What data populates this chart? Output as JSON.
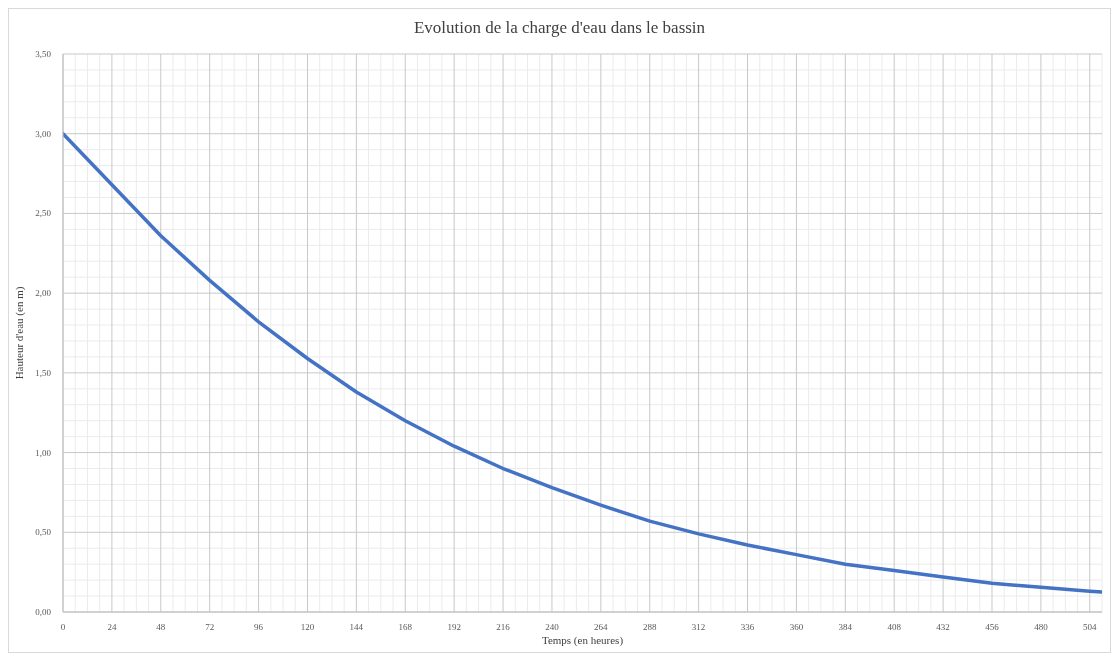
{
  "chart_data": {
    "type": "line",
    "title": "Evolution de la charge d'eau dans le bassin",
    "xlabel": "Temps (en heures)",
    "ylabel": "Hauteur d'eau (en m)",
    "x": [
      0,
      24,
      48,
      72,
      96,
      120,
      144,
      168,
      192,
      216,
      240,
      264,
      288,
      312,
      336,
      360,
      384,
      408,
      432,
      456,
      480,
      504,
      510
    ],
    "series": [
      {
        "color": "#4472c4",
        "values": [
          3.0,
          2.68,
          2.36,
          2.08,
          1.82,
          1.59,
          1.38,
          1.2,
          1.04,
          0.9,
          0.78,
          0.67,
          0.57,
          0.49,
          0.42,
          0.36,
          0.3,
          0.26,
          0.22,
          0.18,
          0.155,
          0.13,
          0.125
        ]
      }
    ],
    "xlim": [
      0,
      510
    ],
    "xticks": [
      0,
      {
        "value": 6,
        "label": null
      },
      {
        "value": 12,
        "label": null
      },
      {
        "value": 18,
        "label": null
      },
      24,
      {
        "value": 30,
        "label": null
      },
      {
        "value": 36,
        "label": null
      },
      {
        "value": 42,
        "label": null
      },
      48,
      {
        "value": 54,
        "label": null
      },
      {
        "value": 60,
        "label": null
      },
      {
        "value": 66,
        "label": null
      },
      72,
      {
        "value": 78,
        "label": null
      },
      {
        "value": 84,
        "label": null
      },
      {
        "value": 90,
        "label": null
      },
      96,
      {
        "value": 102,
        "label": null
      },
      {
        "value": 108,
        "label": null
      },
      {
        "value": 114,
        "label": null
      },
      120,
      {
        "value": 126,
        "label": null
      },
      {
        "value": 132,
        "label": null
      },
      {
        "value": 138,
        "label": null
      },
      144,
      {
        "value": 150,
        "label": null
      },
      {
        "value": 156,
        "label": null
      },
      {
        "value": 162,
        "label": null
      },
      168,
      {
        "value": 174,
        "label": null
      },
      {
        "value": 180,
        "label": null
      },
      {
        "value": 186,
        "label": null
      },
      192,
      {
        "value": 198,
        "label": null
      },
      {
        "value": 204,
        "label": null
      },
      {
        "value": 210,
        "label": null
      },
      216,
      {
        "value": 222,
        "label": null
      },
      {
        "value": 228,
        "label": null
      },
      {
        "value": 234,
        "label": null
      },
      240,
      {
        "value": 246,
        "label": null
      },
      {
        "value": 252,
        "label": null
      },
      {
        "value": 258,
        "label": null
      },
      264,
      {
        "value": 270,
        "label": null
      },
      {
        "value": 276,
        "label": null
      },
      {
        "value": 282,
        "label": null
      },
      288,
      {
        "value": 294,
        "label": null
      },
      {
        "value": 300,
        "label": null
      },
      {
        "value": 306,
        "label": null
      },
      312,
      {
        "value": 318,
        "label": null
      },
      {
        "value": 324,
        "label": null
      },
      {
        "value": 330,
        "label": null
      },
      336,
      {
        "value": 342,
        "label": null
      },
      {
        "value": 348,
        "label": null
      },
      {
        "value": 354,
        "label": null
      },
      360,
      {
        "value": 366,
        "label": null
      },
      {
        "value": 372,
        "label": null
      },
      {
        "value": 378,
        "label": null
      },
      384,
      {
        "value": 390,
        "label": null
      },
      {
        "value": 396,
        "label": null
      },
      {
        "value": 402,
        "label": null
      },
      408,
      {
        "value": 414,
        "label": null
      },
      {
        "value": 420,
        "label": null
      },
      {
        "value": 426,
        "label": null
      },
      432,
      {
        "value": 438,
        "label": null
      },
      {
        "value": 444,
        "label": null
      },
      {
        "value": 450,
        "label": null
      },
      456,
      {
        "value": 462,
        "label": null
      },
      {
        "value": 468,
        "label": null
      },
      {
        "value": 474,
        "label": null
      },
      480,
      {
        "value": 486,
        "label": null
      },
      {
        "value": 492,
        "label": null
      },
      {
        "value": 498,
        "label": null
      },
      504,
      {
        "value": 510,
        "label": null
      }
    ],
    "ylim": [
      0,
      3.5
    ],
    "yticks": [
      {
        "value": 0,
        "label": "0,00"
      },
      {
        "value": 0.1,
        "label": null
      },
      {
        "value": 0.2,
        "label": null
      },
      {
        "value": 0.3,
        "label": null
      },
      {
        "value": 0.4,
        "label": null
      },
      {
        "value": 0.5,
        "label": "0,50"
      },
      {
        "value": 0.6,
        "label": null
      },
      {
        "value": 0.7,
        "label": null
      },
      {
        "value": 0.8,
        "label": null
      },
      {
        "value": 0.9,
        "label": null
      },
      {
        "value": 1,
        "label": "1,00"
      },
      {
        "value": 1.1,
        "label": null
      },
      {
        "value": 1.2,
        "label": null
      },
      {
        "value": 1.3,
        "label": null
      },
      {
        "value": 1.4,
        "label": null
      },
      {
        "value": 1.5,
        "label": "1,50"
      },
      {
        "value": 1.6,
        "label": null
      },
      {
        "value": 1.7,
        "label": null
      },
      {
        "value": 1.8,
        "label": null
      },
      {
        "value": 1.9,
        "label": null
      },
      {
        "value": 2,
        "label": "2,00"
      },
      {
        "value": 2.1,
        "label": null
      },
      {
        "value": 2.2,
        "label": null
      },
      {
        "value": 2.3,
        "label": null
      },
      {
        "value": 2.4,
        "label": null
      },
      {
        "value": 2.5,
        "label": "2,50"
      },
      {
        "value": 2.6,
        "label": null
      },
      {
        "value": 2.7,
        "label": null
      },
      {
        "value": 2.8,
        "label": null
      },
      {
        "value": 2.9,
        "label": null
      },
      {
        "value": 3,
        "label": "3,00"
      },
      {
        "value": 3.1,
        "label": null
      },
      {
        "value": 3.2,
        "label": null
      },
      {
        "value": 3.3,
        "label": null
      },
      {
        "value": 3.4,
        "label": null
      },
      {
        "value": 3.5,
        "label": "3,50"
      }
    ],
    "grid": true,
    "legend": false
  }
}
